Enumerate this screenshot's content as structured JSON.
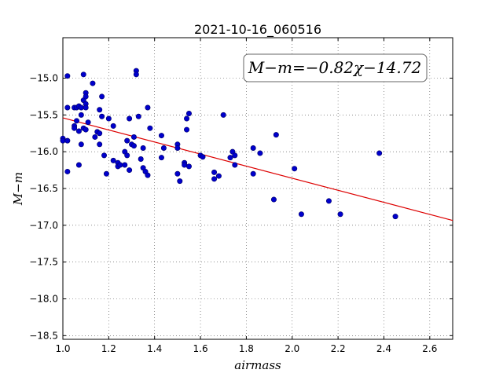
{
  "chart_data": {
    "type": "scatter",
    "title": "2021-10-16_060516",
    "xlabel": "airmass",
    "ylabel": "M−m",
    "xlim": [
      1.0,
      2.7
    ],
    "ylim": [
      -18.55,
      -14.45
    ],
    "xticks": [
      1.0,
      1.2,
      1.4,
      1.6,
      1.8,
      2.0,
      2.2,
      2.4,
      2.6
    ],
    "xtick_labels": [
      "1.0",
      "1.2",
      "1.4",
      "1.6",
      "1.8",
      "2.0",
      "2.2",
      "2.4",
      "2.6"
    ],
    "yticks": [
      -15.0,
      -15.5,
      -16.0,
      -16.5,
      -17.0,
      -17.5,
      -18.0,
      -18.5
    ],
    "ytick_labels": [
      "−15.0",
      "−15.5",
      "−16.0",
      "−16.5",
      "−17.0",
      "−17.5",
      "−18.0",
      "−18.5"
    ],
    "grid": true,
    "annotation": "M−m=−0.82χ−14.72",
    "point_color": "#0000cc",
    "line_color": "#dd0000",
    "fit": {
      "slope": -0.82,
      "intercept": -14.72
    },
    "points": [
      [
        1.0,
        -15.82
      ],
      [
        1.0,
        -15.85
      ],
      [
        1.02,
        -14.97
      ],
      [
        1.02,
        -15.4
      ],
      [
        1.02,
        -15.85
      ],
      [
        1.02,
        -16.27
      ],
      [
        1.05,
        -15.65
      ],
      [
        1.05,
        -15.68
      ],
      [
        1.05,
        -15.4
      ],
      [
        1.06,
        -15.58
      ],
      [
        1.06,
        -15.4
      ],
      [
        1.07,
        -16.18
      ],
      [
        1.07,
        -15.72
      ],
      [
        1.07,
        -15.38
      ],
      [
        1.08,
        -15.9
      ],
      [
        1.08,
        -15.5
      ],
      [
        1.08,
        -15.4
      ],
      [
        1.09,
        -14.95
      ],
      [
        1.09,
        -15.3
      ],
      [
        1.09,
        -15.68
      ],
      [
        1.1,
        -15.2
      ],
      [
        1.1,
        -15.25
      ],
      [
        1.1,
        -15.35
      ],
      [
        1.1,
        -15.4
      ],
      [
        1.1,
        -15.7
      ],
      [
        1.11,
        -15.6
      ],
      [
        1.13,
        -15.07
      ],
      [
        1.14,
        -15.8
      ],
      [
        1.15,
        -15.73
      ],
      [
        1.16,
        -15.75
      ],
      [
        1.16,
        -15.9
      ],
      [
        1.16,
        -15.43
      ],
      [
        1.17,
        -15.25
      ],
      [
        1.17,
        -15.52
      ],
      [
        1.18,
        -16.05
      ],
      [
        1.19,
        -16.3
      ],
      [
        1.2,
        -15.55
      ],
      [
        1.22,
        -15.65
      ],
      [
        1.22,
        -16.12
      ],
      [
        1.24,
        -16.15
      ],
      [
        1.24,
        -16.2
      ],
      [
        1.25,
        -16.18
      ],
      [
        1.27,
        -16.18
      ],
      [
        1.27,
        -16.0
      ],
      [
        1.28,
        -15.85
      ],
      [
        1.28,
        -16.05
      ],
      [
        1.29,
        -15.55
      ],
      [
        1.29,
        -16.25
      ],
      [
        1.3,
        -15.9
      ],
      [
        1.31,
        -15.92
      ],
      [
        1.31,
        -15.8
      ],
      [
        1.32,
        -14.9
      ],
      [
        1.32,
        -14.95
      ],
      [
        1.33,
        -15.52
      ],
      [
        1.34,
        -16.1
      ],
      [
        1.35,
        -16.22
      ],
      [
        1.35,
        -15.95
      ],
      [
        1.36,
        -16.27
      ],
      [
        1.37,
        -16.32
      ],
      [
        1.37,
        -15.4
      ],
      [
        1.38,
        -15.68
      ],
      [
        1.43,
        -15.78
      ],
      [
        1.43,
        -16.08
      ],
      [
        1.44,
        -15.95
      ],
      [
        1.5,
        -15.9
      ],
      [
        1.5,
        -15.95
      ],
      [
        1.5,
        -16.3
      ],
      [
        1.51,
        -16.4
      ],
      [
        1.53,
        -16.15
      ],
      [
        1.53,
        -16.18
      ],
      [
        1.54,
        -15.7
      ],
      [
        1.54,
        -15.55
      ],
      [
        1.55,
        -16.2
      ],
      [
        1.55,
        -15.48
      ],
      [
        1.6,
        -16.05
      ],
      [
        1.61,
        -16.07
      ],
      [
        1.66,
        -16.28
      ],
      [
        1.66,
        -16.37
      ],
      [
        1.68,
        -16.33
      ],
      [
        1.7,
        -15.5
      ],
      [
        1.73,
        -16.08
      ],
      [
        1.74,
        -16.0
      ],
      [
        1.75,
        -16.05
      ],
      [
        1.75,
        -16.18
      ],
      [
        1.83,
        -16.3
      ],
      [
        1.83,
        -15.95
      ],
      [
        1.86,
        -16.02
      ],
      [
        1.92,
        -16.65
      ],
      [
        1.93,
        -15.77
      ],
      [
        2.01,
        -16.23
      ],
      [
        2.04,
        -16.85
      ],
      [
        2.16,
        -16.67
      ],
      [
        2.21,
        -16.85
      ],
      [
        2.38,
        -16.02
      ],
      [
        2.45,
        -16.88
      ]
    ]
  }
}
